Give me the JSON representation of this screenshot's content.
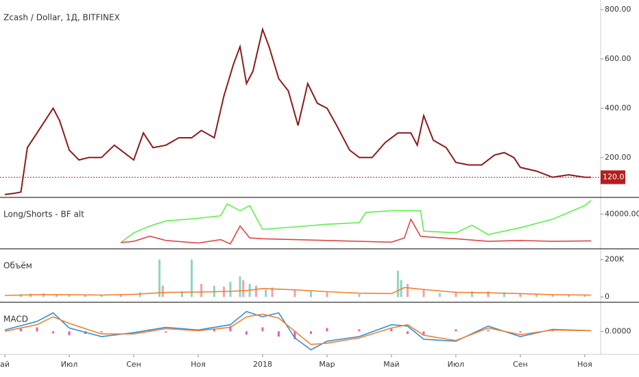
{
  "chart_data": [
    {
      "type": "line",
      "title": "Zcash / Dollar, 1Д, BITFINEX",
      "xlim": [
        -0.15,
        18.47
      ],
      "ylim": [
        41,
        839
      ],
      "yticks": [
        {
          "value": 200,
          "label": "200.00"
        },
        {
          "value": 400,
          "label": "400.00"
        },
        {
          "value": 600,
          "label": "600.00"
        },
        {
          "value": 800,
          "label": "800.00"
        }
      ],
      "last_value": 120.07,
      "last_color": "#b71c1c",
      "series": [
        {
          "color": "#8b1a1a",
          "x": [
            0,
            0.3,
            0.5,
            0.7,
            1.0,
            1.3,
            1.5,
            1.7,
            2.0,
            2.3,
            2.6,
            3.0,
            3.4,
            3.7,
            4.0,
            4.3,
            4.6,
            5.0,
            5.4,
            5.8,
            6.1,
            6.5,
            6.8,
            7.1,
            7.3,
            7.5,
            7.7,
            8.0,
            8.2,
            8.5,
            8.8,
            9.1,
            9.4,
            9.7,
            10.0,
            10.3,
            10.7,
            11.0,
            11.4,
            11.8,
            12.2,
            12.6,
            12.8,
            13.0,
            13.3,
            13.7,
            14.0,
            14.4,
            14.8,
            15.2,
            15.5,
            15.8,
            16.0,
            16.5,
            17.0,
            17.5,
            18.0,
            18.2
          ],
          "values": [
            50,
            55,
            60,
            240,
            300,
            360,
            400,
            350,
            230,
            190,
            200,
            200,
            250,
            220,
            190,
            300,
            240,
            250,
            280,
            280,
            310,
            280,
            450,
            580,
            650,
            500,
            550,
            720,
            650,
            520,
            470,
            330,
            500,
            420,
            400,
            330,
            230,
            200,
            200,
            260,
            300,
            300,
            250,
            370,
            270,
            240,
            180,
            170,
            170,
            210,
            220,
            200,
            160,
            145,
            120,
            130,
            120,
            120
          ]
        }
      ]
    },
    {
      "type": "line",
      "title": "Long/Shorts - BF alt",
      "xlim": [
        -0.15,
        18.47
      ],
      "ylim": [
        0,
        58800
      ],
      "yticks": [
        {
          "value": 40000,
          "label": "40000.0000"
        }
      ],
      "series": [
        {
          "color": "#5cf04a",
          "x": [
            3.6,
            4.0,
            4.5,
            5.0,
            6.0,
            6.7,
            6.9,
            7.3,
            7.6,
            8.0,
            9.0,
            10.0,
            11.0,
            11.2,
            12.0,
            12.9,
            13.0,
            14.0,
            14.5,
            15.0,
            16.0,
            17.0,
            17.5,
            18.0,
            18.2
          ],
          "values": [
            6500,
            18000,
            26000,
            32000,
            35000,
            38000,
            52000,
            44000,
            50000,
            22000,
            25000,
            28000,
            30000,
            42000,
            44000,
            44000,
            20000,
            18000,
            27000,
            16000,
            24000,
            34000,
            42000,
            50000,
            56000
          ]
        },
        {
          "color": "#e04545",
          "x": [
            3.6,
            4.0,
            4.5,
            5.0,
            6.0,
            6.7,
            7.0,
            7.3,
            7.6,
            8.0,
            9.0,
            10.0,
            11.0,
            12.0,
            12.4,
            12.6,
            12.9,
            13.2,
            14.0,
            15.0,
            16.0,
            17.0,
            18.2
          ],
          "values": [
            6500,
            8000,
            14000,
            9000,
            6000,
            10000,
            5000,
            26000,
            12000,
            11000,
            10000,
            9000,
            8000,
            7000,
            12000,
            34000,
            14000,
            13000,
            11000,
            8000,
            9000,
            8000,
            8500
          ]
        }
      ]
    },
    {
      "type": "bar",
      "title": "Объём",
      "xlim": [
        -0.15,
        18.47
      ],
      "ylim": [
        -25000,
        253600
      ],
      "yticks": [
        0,
        {
          "value": 200000,
          "label": "200K"
        }
      ],
      "series": [
        {
          "kind": "bar",
          "color": "#8fd3c0",
          "x": [
            0.5,
            1.2,
            2.0,
            3.0,
            4.2,
            4.8,
            5.5,
            5.8,
            6.5,
            7.0,
            7.3,
            7.6,
            8.1,
            9.5,
            11.0,
            12.2,
            12.3,
            13.5,
            14.5,
            15.5,
            16.5,
            17.5
          ],
          "values": [
            15000,
            20000,
            10000,
            12000,
            25000,
            200000,
            30000,
            200000,
            60000,
            80000,
            110000,
            70000,
            40000,
            30000,
            15000,
            140000,
            90000,
            20000,
            30000,
            25000,
            15000,
            12000
          ]
        },
        {
          "kind": "bar",
          "color": "#f2a0a0",
          "x": [
            0.8,
            1.6,
            2.5,
            3.6,
            4.9,
            6.1,
            6.8,
            7.4,
            7.8,
            8.3,
            9.0,
            10.0,
            12.5,
            13.0,
            14.0,
            15.0,
            16.0,
            17.0,
            18.0
          ],
          "values": [
            18000,
            14000,
            9000,
            15000,
            60000,
            70000,
            55000,
            90000,
            60000,
            50000,
            35000,
            25000,
            70000,
            40000,
            28000,
            30000,
            18000,
            14000,
            10000
          ]
        },
        {
          "kind": "line",
          "color": "#f08030",
          "x": [
            0,
            1,
            2,
            3,
            4,
            5,
            6,
            7,
            7.5,
            8,
            9,
            10,
            11,
            12,
            12.4,
            13,
            14,
            15,
            16,
            17,
            18.2
          ],
          "values": [
            8000,
            12000,
            12000,
            10000,
            14000,
            24000,
            26000,
            30000,
            34000,
            45000,
            38000,
            28000,
            20000,
            18000,
            50000,
            40000,
            25000,
            22000,
            18000,
            12000,
            10000
          ]
        }
      ]
    },
    {
      "type": "line",
      "title": "MACD",
      "xlim": [
        -0.15,
        18.47
      ],
      "ylim": [
        -35,
        43
      ],
      "yticks": [
        {
          "value": 0,
          "label": "0.0000"
        }
      ],
      "xticks": [
        {
          "value": 0,
          "label": "ай"
        },
        {
          "value": 2,
          "label": "Июл"
        },
        {
          "value": 4,
          "label": "Сен"
        },
        {
          "value": 6,
          "label": "Ноя"
        },
        {
          "value": 8,
          "label": "2018"
        },
        {
          "value": 10,
          "label": "Мар"
        },
        {
          "value": 12,
          "label": "Май"
        },
        {
          "value": 14,
          "label": "Июл"
        },
        {
          "value": 16,
          "label": "Сен"
        },
        {
          "value": 18,
          "label": "Ноя"
        }
      ],
      "series": [
        {
          "kind": "bar",
          "color": "#e05fb0",
          "x": [
            0.5,
            1.0,
            1.5,
            2.0,
            2.5,
            3.0,
            4.5,
            5.0,
            6.5,
            7.0,
            7.5,
            8.0,
            8.5,
            9.0,
            9.5,
            10.0,
            11.0,
            12.0,
            12.5,
            13.0,
            14.0,
            15.0,
            16.0,
            17.0
          ],
          "values": [
            4,
            6,
            -3,
            -6,
            -4,
            -2,
            3,
            -2,
            4,
            8,
            -5,
            6,
            -8,
            -12,
            -4,
            5,
            3,
            4,
            -4,
            -5,
            3,
            2,
            -2,
            1
          ]
        },
        {
          "kind": "line",
          "color": "#2d8fd5",
          "x": [
            0,
            1,
            1.5,
            2,
            3,
            4,
            5,
            6,
            7,
            7.5,
            8,
            8.5,
            9,
            9.5,
            10,
            11,
            12,
            12.5,
            13,
            14,
            15,
            16,
            17,
            18.2
          ],
          "values": [
            2,
            15,
            28,
            5,
            -8,
            -2,
            6,
            2,
            10,
            30,
            22,
            28,
            -10,
            -28,
            -15,
            -8,
            10,
            8,
            -12,
            -15,
            8,
            -8,
            3,
            1
          ]
        },
        {
          "kind": "line",
          "color": "#f08030",
          "x": [
            0,
            1,
            1.5,
            2,
            3,
            4,
            5,
            6,
            7,
            7.5,
            8,
            8.5,
            9,
            9.5,
            10,
            11,
            12,
            12.5,
            13,
            14,
            15,
            16,
            17,
            18.2
          ],
          "values": [
            0,
            10,
            22,
            12,
            -4,
            -4,
            4,
            1,
            6,
            22,
            26,
            20,
            0,
            -20,
            -18,
            -10,
            5,
            10,
            -6,
            -14,
            5,
            -5,
            2,
            1
          ]
        }
      ]
    }
  ]
}
